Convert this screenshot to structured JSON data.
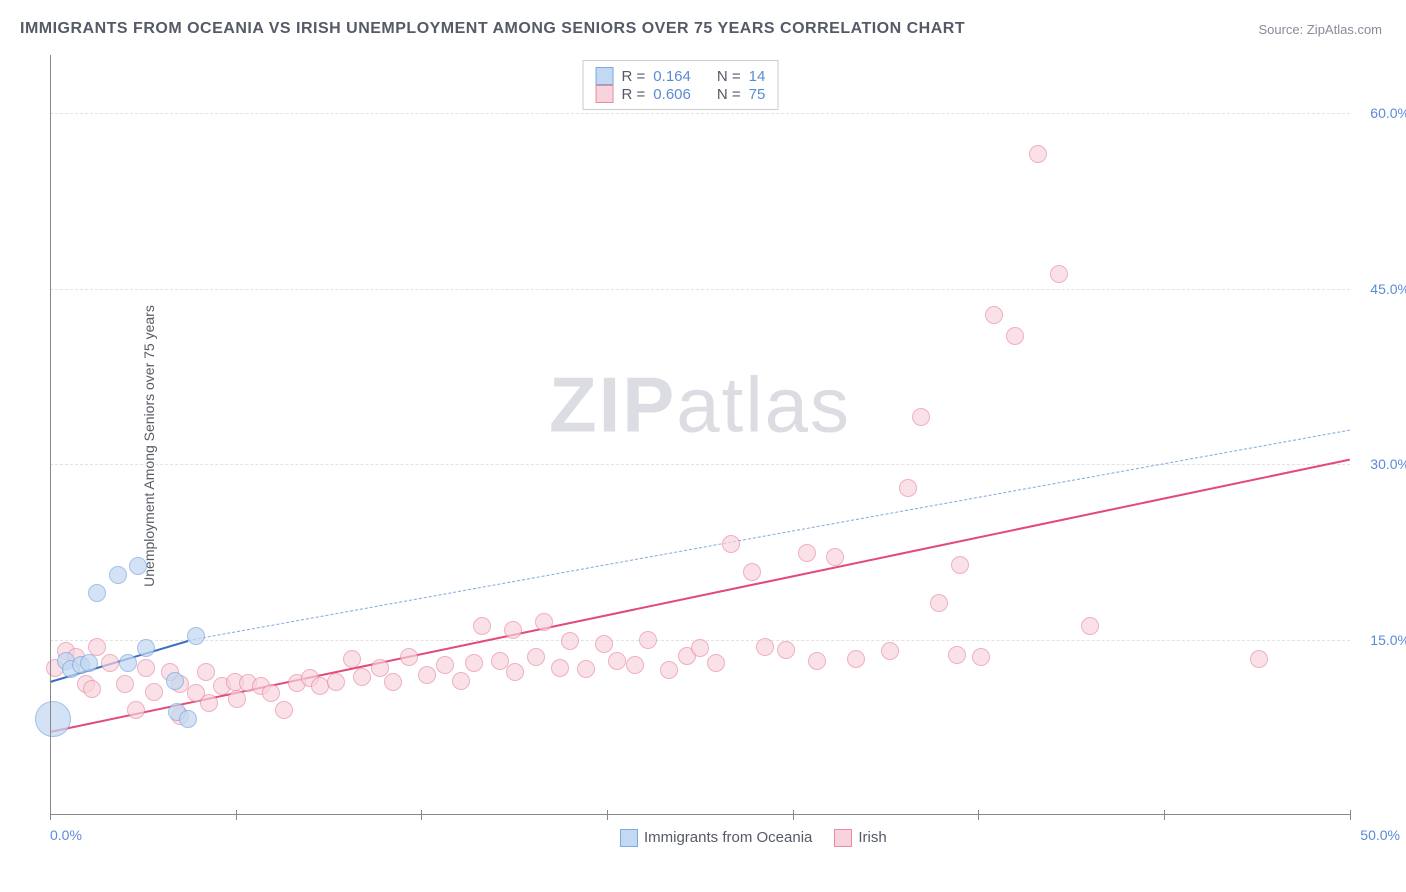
{
  "title": "IMMIGRANTS FROM OCEANIA VS IRISH UNEMPLOYMENT AMONG SENIORS OVER 75 YEARS CORRELATION CHART",
  "source": "Source: ZipAtlas.com",
  "ylabel": "Unemployment Among Seniors over 75 years",
  "watermark_bold": "ZIP",
  "watermark_light": "atlas",
  "chart": {
    "type": "scatter",
    "background_color": "#ffffff",
    "grid_color": "#e2e2e2",
    "axis_color": "#888888",
    "xlim": [
      0,
      50
    ],
    "ylim": [
      0,
      65
    ],
    "xticks": [
      0,
      7.14,
      14.28,
      21.42,
      28.56,
      35.7,
      42.84,
      50
    ],
    "xtick_labels_visible": {
      "0": "0.0%",
      "50": "50.0%"
    },
    "yticks": [
      15,
      30,
      45,
      60
    ],
    "ytick_labels": [
      "15.0%",
      "30.0%",
      "45.0%",
      "60.0%"
    ],
    "tick_label_color": "#5b8bd6",
    "tick_label_fontsize": 14,
    "marker_radius": 9,
    "marker_stroke_width": 1.5,
    "series": {
      "oceania": {
        "label": "Immigrants from Oceania",
        "fill_color": "#c3d8f2",
        "stroke_color": "#7fa9de",
        "fill_opacity": 0.72,
        "R": "0.164",
        "N": "14",
        "regression": {
          "x1": 0,
          "y1": 11.5,
          "x2": 5.3,
          "y2": 15.0,
          "solid_color": "#3b6fbf",
          "solid_width": 2.2,
          "dashed_extend_to_x": 50,
          "dashed_y_at_xmax": 33.0
        },
        "points": [
          {
            "x": 0.1,
            "y": 8.2,
            "r": 18
          },
          {
            "x": 0.6,
            "y": 13.2
          },
          {
            "x": 0.8,
            "y": 12.5
          },
          {
            "x": 1.2,
            "y": 12.8
          },
          {
            "x": 1.5,
            "y": 13.0
          },
          {
            "x": 1.8,
            "y": 19.0
          },
          {
            "x": 2.6,
            "y": 20.5
          },
          {
            "x": 3.0,
            "y": 13.0
          },
          {
            "x": 3.4,
            "y": 21.3
          },
          {
            "x": 3.7,
            "y": 14.3
          },
          {
            "x": 4.8,
            "y": 11.5
          },
          {
            "x": 4.9,
            "y": 8.8
          },
          {
            "x": 5.3,
            "y": 8.2
          },
          {
            "x": 5.6,
            "y": 15.3
          }
        ]
      },
      "irish": {
        "label": "Irish",
        "fill_color": "#f9d3dc",
        "stroke_color": "#e88ba5",
        "fill_opacity": 0.68,
        "R": "0.606",
        "N": "75",
        "regression": {
          "x1": 0,
          "y1": 7.2,
          "x2": 50,
          "y2": 30.5,
          "solid_color": "#e24a78",
          "solid_width": 2.5
        },
        "points": [
          {
            "x": 0.2,
            "y": 12.6
          },
          {
            "x": 0.6,
            "y": 14.0
          },
          {
            "x": 1.0,
            "y": 13.5
          },
          {
            "x": 1.4,
            "y": 11.2
          },
          {
            "x": 1.8,
            "y": 14.4
          },
          {
            "x": 1.6,
            "y": 10.8
          },
          {
            "x": 2.3,
            "y": 13.0
          },
          {
            "x": 2.9,
            "y": 11.2
          },
          {
            "x": 3.3,
            "y": 9.0
          },
          {
            "x": 3.7,
            "y": 12.6
          },
          {
            "x": 4.0,
            "y": 10.5
          },
          {
            "x": 4.6,
            "y": 12.2
          },
          {
            "x": 5.0,
            "y": 8.5
          },
          {
            "x": 5.0,
            "y": 11.2
          },
          {
            "x": 5.6,
            "y": 10.4
          },
          {
            "x": 6.0,
            "y": 12.2
          },
          {
            "x": 6.1,
            "y": 9.6
          },
          {
            "x": 6.6,
            "y": 11.0
          },
          {
            "x": 7.1,
            "y": 11.4
          },
          {
            "x": 7.2,
            "y": 9.9
          },
          {
            "x": 7.6,
            "y": 11.3
          },
          {
            "x": 8.1,
            "y": 11.0
          },
          {
            "x": 8.5,
            "y": 10.4
          },
          {
            "x": 9.0,
            "y": 9.0
          },
          {
            "x": 9.5,
            "y": 11.3
          },
          {
            "x": 10.0,
            "y": 11.7
          },
          {
            "x": 10.4,
            "y": 11.0
          },
          {
            "x": 11.0,
            "y": 11.4
          },
          {
            "x": 11.6,
            "y": 13.3
          },
          {
            "x": 12.0,
            "y": 11.8
          },
          {
            "x": 12.7,
            "y": 12.6
          },
          {
            "x": 13.2,
            "y": 11.4
          },
          {
            "x": 13.8,
            "y": 13.5
          },
          {
            "x": 14.5,
            "y": 12.0
          },
          {
            "x": 15.2,
            "y": 12.8
          },
          {
            "x": 15.8,
            "y": 11.5
          },
          {
            "x": 16.3,
            "y": 13.0
          },
          {
            "x": 16.6,
            "y": 16.2
          },
          {
            "x": 17.3,
            "y": 13.2
          },
          {
            "x": 17.8,
            "y": 15.8
          },
          {
            "x": 17.9,
            "y": 12.2
          },
          {
            "x": 18.7,
            "y": 13.5
          },
          {
            "x": 19.0,
            "y": 16.5
          },
          {
            "x": 19.6,
            "y": 12.6
          },
          {
            "x": 20.0,
            "y": 14.9
          },
          {
            "x": 20.6,
            "y": 12.5
          },
          {
            "x": 21.3,
            "y": 14.6
          },
          {
            "x": 21.8,
            "y": 13.2
          },
          {
            "x": 22.5,
            "y": 12.8
          },
          {
            "x": 23.0,
            "y": 15.0
          },
          {
            "x": 23.8,
            "y": 12.4
          },
          {
            "x": 24.5,
            "y": 13.6
          },
          {
            "x": 25.0,
            "y": 14.3
          },
          {
            "x": 25.6,
            "y": 13.0
          },
          {
            "x": 26.2,
            "y": 23.2
          },
          {
            "x": 27.0,
            "y": 20.8
          },
          {
            "x": 27.5,
            "y": 14.4
          },
          {
            "x": 28.3,
            "y": 14.1
          },
          {
            "x": 29.1,
            "y": 22.4
          },
          {
            "x": 29.5,
            "y": 13.2
          },
          {
            "x": 30.2,
            "y": 22.1
          },
          {
            "x": 31.0,
            "y": 13.3
          },
          {
            "x": 32.3,
            "y": 14.0
          },
          {
            "x": 33.0,
            "y": 28.0
          },
          {
            "x": 33.5,
            "y": 34.0
          },
          {
            "x": 34.2,
            "y": 18.1
          },
          {
            "x": 35.0,
            "y": 21.4
          },
          {
            "x": 35.8,
            "y": 13.5
          },
          {
            "x": 36.3,
            "y": 42.8
          },
          {
            "x": 37.1,
            "y": 41.0
          },
          {
            "x": 38.0,
            "y": 56.5
          },
          {
            "x": 38.8,
            "y": 46.3
          },
          {
            "x": 40.0,
            "y": 16.2
          },
          {
            "x": 46.5,
            "y": 13.3
          },
          {
            "x": 34.9,
            "y": 13.7
          }
        ]
      }
    }
  },
  "legend": {
    "r_label": "R  =",
    "n_label": "N  ="
  }
}
